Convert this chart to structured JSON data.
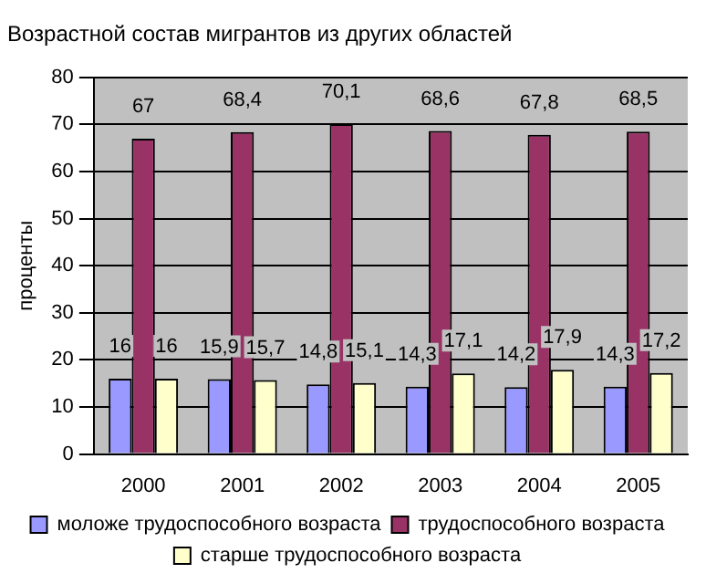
{
  "chart_data": {
    "type": "bar",
    "title": "Возрастной состав мигрантов из других областей",
    "ylabel": "проценты",
    "categories": [
      "2000",
      "2001",
      "2002",
      "2003",
      "2004",
      "2005"
    ],
    "series": [
      {
        "name": "моложе трудоспособного возраста",
        "color": "#9999ff",
        "values": [
          16,
          15.9,
          14.8,
          14.3,
          14.2,
          14.3
        ],
        "value_labels": [
          "16",
          "15,9",
          "14,8",
          "14,3",
          "14,2",
          "14,3"
        ]
      },
      {
        "name": "трудоспособного возраста",
        "color": "#993366",
        "values": [
          67,
          68.4,
          70.1,
          68.6,
          67.8,
          68.5
        ],
        "value_labels": [
          "67",
          "68,4",
          "70,1",
          "68,6",
          "67,8",
          "68,5"
        ]
      },
      {
        "name": "старше трудоспособного возраста",
        "color": "#ffffcc",
        "values": [
          16,
          15.7,
          15.1,
          17.1,
          17.9,
          17.2
        ],
        "value_labels": [
          "16",
          "15,7",
          "15,1",
          "17,1",
          "17,9",
          "17,2"
        ]
      }
    ],
    "ylim": [
      0,
      80
    ],
    "yticks": [
      0,
      10,
      20,
      30,
      40,
      50,
      60,
      70,
      80
    ],
    "grid": "y",
    "legend": "bottom"
  }
}
